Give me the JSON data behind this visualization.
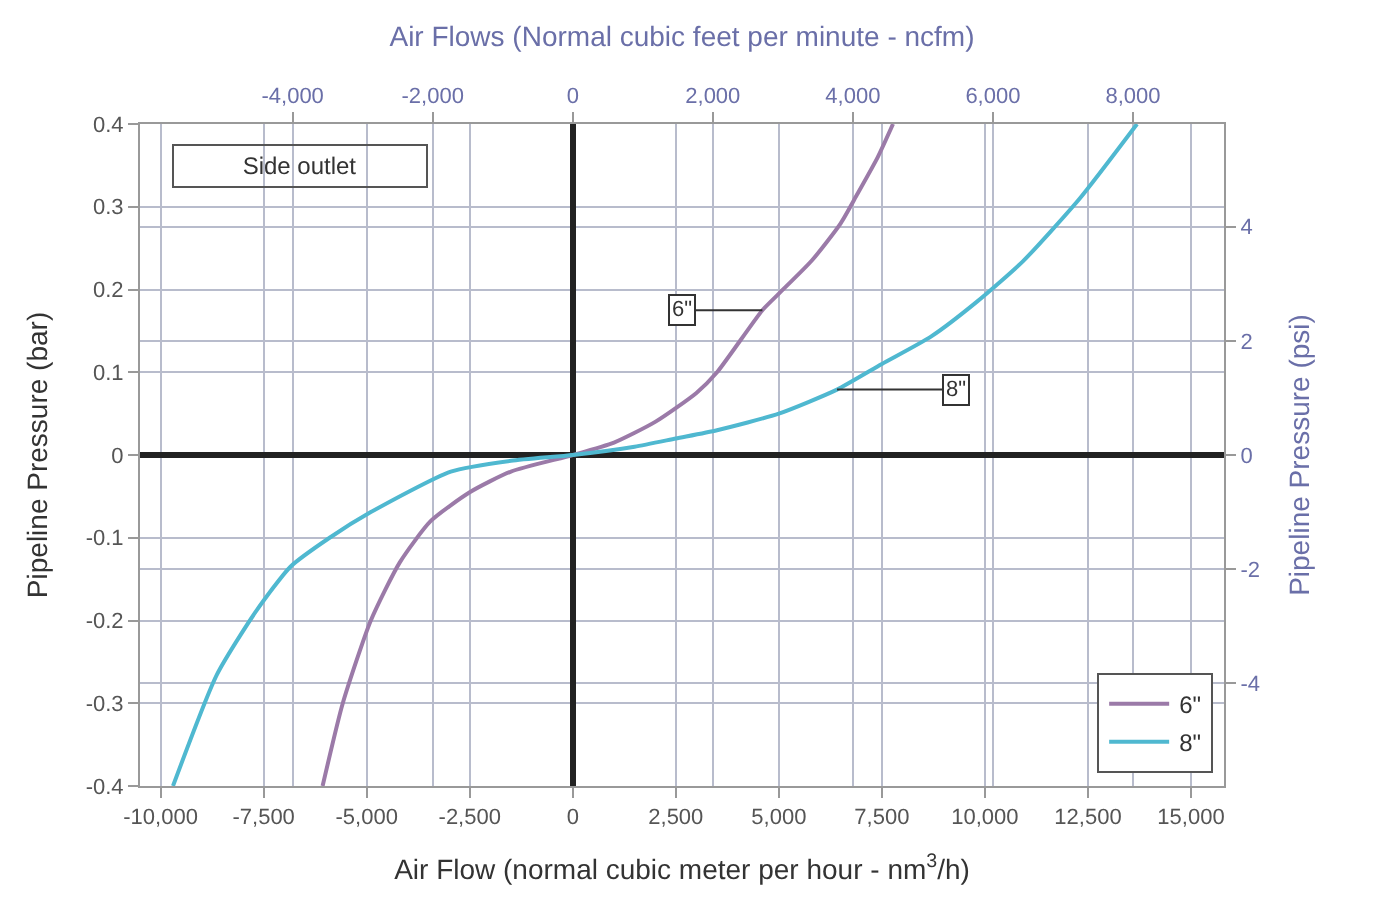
{
  "chart_data": {
    "type": "line",
    "xlabel": "Air Flow (normal cubic meter per hour - nm$^{3}$/h)",
    "ylabel": "Pipeline Pressure (bar)",
    "x2label": "Air Flows (Normal cubic feet per minute - ncfm)",
    "y2label": "Pipeline Pressure (psi)",
    "xlim": [
      -10500,
      15800
    ],
    "xticks": [
      {
        "value": -10000,
        "label": "-10,000"
      },
      {
        "value": -7500,
        "label": "-7,500"
      },
      {
        "value": -5000,
        "label": "-5,000"
      },
      {
        "value": -2500,
        "label": "-2,500"
      },
      0,
      {
        "value": 2500,
        "label": "2,500"
      },
      {
        "value": 5000,
        "label": "5,000"
      },
      {
        "value": 7500,
        "label": "7,500"
      },
      {
        "value": 10000,
        "label": "10,000"
      },
      {
        "value": 12500,
        "label": "12,500"
      },
      {
        "value": 15000,
        "label": "15,000"
      }
    ],
    "x2lim": [
      -6180,
      9300
    ],
    "x2ticks": [
      {
        "value": -4000,
        "label": "-4,000"
      },
      {
        "value": -2000,
        "label": "-2,000"
      },
      0,
      {
        "value": 2000,
        "label": "2,000"
      },
      {
        "value": 4000,
        "label": "4,000"
      },
      {
        "value": 6000,
        "label": "6,000"
      },
      {
        "value": 8000,
        "label": "8,000"
      }
    ],
    "ylim": [
      -0.4,
      0.4
    ],
    "yticks": [
      -0.4,
      -0.3,
      -0.2,
      -0.1,
      0,
      0.1,
      0.2,
      0.3,
      0.4
    ],
    "y2lim": [
      -5.8,
      5.8
    ],
    "y2ticks": [
      -4,
      -2,
      0,
      2,
      4
    ],
    "series": [
      {
        "name": "6\"",
        "color": "#9b7aa8",
        "x": [
          -6070,
          -5580,
          -4900,
          -4200,
          -3450,
          -2500,
          -1500,
          0,
          1000,
          2000,
          3000,
          3500,
          4600,
          5000,
          5800,
          6500,
          6900,
          7400,
          7770
        ],
        "values": [
          -0.4,
          -0.3,
          -0.2,
          -0.13,
          -0.08,
          -0.045,
          -0.02,
          0,
          0.015,
          0.04,
          0.075,
          0.1,
          0.175,
          0.195,
          0.235,
          0.28,
          0.315,
          0.36,
          0.4
        ]
      },
      {
        "name": "8\"",
        "color": "#4fb8d0",
        "x": [
          -9700,
          -8640,
          -7700,
          -6850,
          -5900,
          -4900,
          -2960,
          -1500,
          0,
          1500,
          2500,
          3500,
          5000,
          6410,
          7500,
          8690,
          9800,
          10920,
          12300,
          13690
        ],
        "values": [
          -0.4,
          -0.266,
          -0.19,
          -0.135,
          -0.1,
          -0.069,
          -0.02,
          -0.007,
          0,
          0.01,
          0.02,
          0.03,
          0.05,
          0.079,
          0.11,
          0.143,
          0.185,
          0.234,
          0.31,
          0.4
        ]
      }
    ],
    "annotations": [
      "Side outlet",
      {
        "text": "6\"",
        "x": 4600,
        "y": 0.175
      },
      {
        "text": "8\"",
        "x": 6410,
        "y": 0.079
      }
    ],
    "grid": true,
    "legend": "bottom right",
    "line_style": "solid",
    "marker": "none"
  }
}
